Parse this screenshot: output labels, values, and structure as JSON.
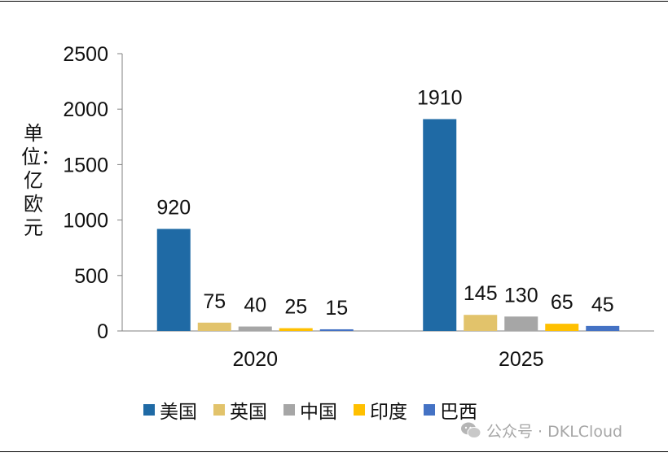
{
  "ylabel_text": "单位：亿欧元",
  "watermark_text": "公众号 · DKLCloud",
  "chart_data": {
    "type": "bar",
    "title": "",
    "xlabel": "",
    "ylabel": "单位：亿欧元",
    "categories": [
      "2020",
      "2025"
    ],
    "ylim": [
      0,
      2500
    ],
    "yticks": [
      0,
      500,
      1000,
      1500,
      2000,
      2500
    ],
    "grid": false,
    "legend_position": "bottom",
    "series": [
      {
        "name": "美国",
        "color": "#1f6aa5",
        "values": [
          920,
          1910
        ]
      },
      {
        "name": "英国",
        "color": "#e2c36b",
        "values": [
          75,
          145
        ]
      },
      {
        "name": "中国",
        "color": "#a6a6a6",
        "values": [
          40,
          130
        ]
      },
      {
        "name": "印度",
        "color": "#ffc000",
        "values": [
          25,
          65
        ]
      },
      {
        "name": "巴西",
        "color": "#4472c4",
        "values": [
          15,
          45
        ]
      }
    ]
  }
}
